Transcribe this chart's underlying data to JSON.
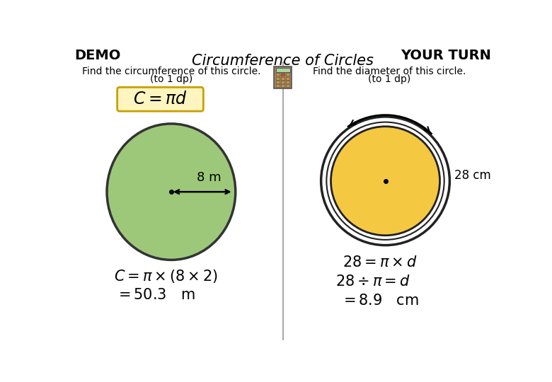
{
  "title": "Circumference of Circles",
  "demo_label": "DEMO",
  "yourturn_label": "YOUR TURN",
  "demo_subtitle1": "Find the circumference of this circle.",
  "demo_subtitle2": "(to 1 dp)",
  "yourturn_subtitle1": "Find the diameter of this circle.",
  "yourturn_subtitle2": "(to 1 dp)",
  "formula_text": "$C = \\pi d$",
  "formula_box_color": "#FFF5C0",
  "formula_box_edge": "#C8A000",
  "demo_circle_color": "#9DC87A",
  "demo_circle_edge": "#333333",
  "demo_radius_label": "8 m",
  "yourturn_circle_fill": "#F5C842",
  "yourturn_circle_edge": "#222222",
  "yourturn_circ_label": "28 cm",
  "demo_eq1": "$C = \\pi \\times (8 \\times 2)$",
  "demo_eq2": "$= 50.3$   m",
  "yourturn_eq1": "$28 = \\pi \\times d$",
  "yourturn_eq2": "$28 \\div \\pi = d$",
  "yourturn_eq3": "$= 8.9$   cm",
  "bg_color": "#FFFFFF",
  "divider_color": "#AAAAAA",
  "text_color": "#000000"
}
